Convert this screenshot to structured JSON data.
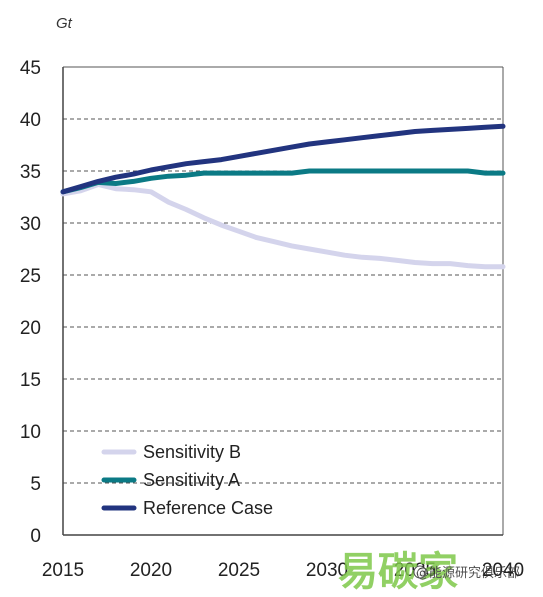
{
  "chart_data": {
    "type": "line",
    "title": "",
    "ylabel": "Gt",
    "xlabel": "",
    "xlim": [
      2015,
      2040
    ],
    "ylim": [
      0,
      45
    ],
    "x_ticks": [
      2015,
      2020,
      2025,
      2030,
      2035,
      2040
    ],
    "y_ticks": [
      0,
      5,
      10,
      15,
      20,
      25,
      30,
      35,
      40,
      45
    ],
    "grid": "horizontal dashed",
    "legend_position": "bottom-left",
    "x": [
      2015,
      2016,
      2017,
      2018,
      2019,
      2020,
      2021,
      2022,
      2023,
      2024,
      2025,
      2026,
      2027,
      2028,
      2029,
      2030,
      2031,
      2032,
      2033,
      2034,
      2035,
      2036,
      2037,
      2038,
      2039,
      2040
    ],
    "series": [
      {
        "name": "Sensitivity B",
        "color": "#d4d4ec",
        "values": [
          32.8,
          33.1,
          33.7,
          33.3,
          33.2,
          33.0,
          32.0,
          31.3,
          30.5,
          29.8,
          29.2,
          28.6,
          28.2,
          27.8,
          27.5,
          27.2,
          26.9,
          26.7,
          26.6,
          26.4,
          26.2,
          26.1,
          26.1,
          25.9,
          25.8,
          25.8
        ]
      },
      {
        "name": "Sensitivity A",
        "color": "#0b7a85",
        "values": [
          33.0,
          33.4,
          33.9,
          33.8,
          34.0,
          34.3,
          34.5,
          34.6,
          34.8,
          34.8,
          34.8,
          34.8,
          34.8,
          34.8,
          35.0,
          35.0,
          35.0,
          35.0,
          35.0,
          35.0,
          35.0,
          35.0,
          35.0,
          35.0,
          34.8,
          34.8
        ]
      },
      {
        "name": "Reference Case",
        "color": "#22347f",
        "values": [
          33.0,
          33.5,
          34.0,
          34.4,
          34.7,
          35.1,
          35.4,
          35.7,
          35.9,
          36.1,
          36.4,
          36.7,
          37.0,
          37.3,
          37.6,
          37.8,
          38.0,
          38.2,
          38.4,
          38.6,
          38.8,
          38.9,
          39.0,
          39.1,
          39.2,
          39.3
        ]
      }
    ]
  },
  "watermark": {
    "large_text": "易碳家",
    "small_text": "@能源研究俱乐部",
    "color": "#7ec84a"
  },
  "colors": {
    "grid": "#555555",
    "axis": "#444444"
  }
}
